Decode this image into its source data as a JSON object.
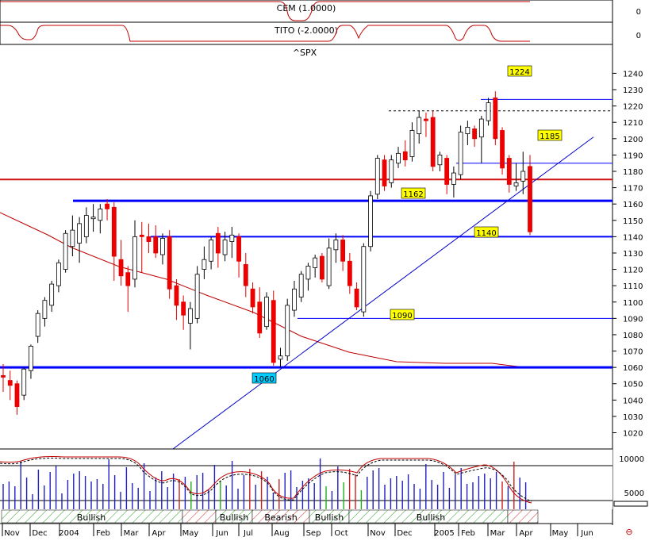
{
  "chart_data": {
    "type": "candlestick",
    "symbol": "^SPX",
    "indicators": {
      "cem_label": "CEM (1.0000)",
      "tito_label": "TITO (-2.0000)",
      "cem_value": "0",
      "tito_value": "0"
    },
    "y_ticks": [
      1020,
      1030,
      1040,
      1050,
      1060,
      1070,
      1080,
      1090,
      1100,
      1110,
      1120,
      1130,
      1140,
      1150,
      1160,
      1170,
      1180,
      1190,
      1200,
      1210,
      1220,
      1230,
      1240
    ],
    "ylim": [
      1012,
      1247
    ],
    "x_labels": [
      "Nov",
      "Dec",
      "2004",
      "Feb",
      "Mar",
      "Apr",
      "May",
      "Jun",
      "Jul",
      "Aug",
      "Sep",
      "Oct",
      "Nov",
      "Dec",
      "2005",
      "Feb",
      "Mar",
      "Apr",
      "May",
      "Jun"
    ],
    "levels": [
      {
        "value": 1224,
        "label": "1224",
        "color": "#0000ff"
      },
      {
        "value": 1185,
        "label": "1185",
        "color": "#0000ff"
      },
      {
        "value": 1162,
        "label": "1162",
        "color": "#0000ff"
      },
      {
        "value": 1140,
        "label": "1140",
        "color": "#0000ff"
      },
      {
        "value": 1090,
        "label": "1090",
        "color": "#0000ff"
      },
      {
        "value": 1060,
        "label": "1060",
        "color": "#0000ff"
      }
    ],
    "resistance_red": 1175,
    "dashed_level": 1217,
    "candles": [
      {
        "o": 1055,
        "h": 1062,
        "l": 1045,
        "c": 1054
      },
      {
        "o": 1052,
        "h": 1058,
        "l": 1040,
        "c": 1049
      },
      {
        "o": 1050,
        "h": 1052,
        "l": 1031,
        "c": 1036
      },
      {
        "o": 1043,
        "h": 1060,
        "l": 1040,
        "c": 1059
      },
      {
        "o": 1058,
        "h": 1074,
        "l": 1053,
        "c": 1073
      },
      {
        "o": 1079,
        "h": 1095,
        "l": 1075,
        "c": 1093
      },
      {
        "o": 1090,
        "h": 1103,
        "l": 1085,
        "c": 1101
      },
      {
        "o": 1098,
        "h": 1113,
        "l": 1094,
        "c": 1111
      },
      {
        "o": 1110,
        "h": 1126,
        "l": 1106,
        "c": 1124
      },
      {
        "o": 1120,
        "h": 1144,
        "l": 1118,
        "c": 1142
      },
      {
        "o": 1134,
        "h": 1153,
        "l": 1128,
        "c": 1144
      },
      {
        "o": 1136,
        "h": 1152,
        "l": 1124,
        "c": 1148
      },
      {
        "o": 1140,
        "h": 1158,
        "l": 1136,
        "c": 1153
      },
      {
        "o": 1151,
        "h": 1160,
        "l": 1143,
        "c": 1152
      },
      {
        "o": 1150,
        "h": 1160,
        "l": 1142,
        "c": 1157
      },
      {
        "o": 1160,
        "h": 1163,
        "l": 1150,
        "c": 1157
      },
      {
        "o": 1158,
        "h": 1161,
        "l": 1113,
        "c": 1128
      },
      {
        "o": 1126,
        "h": 1138,
        "l": 1110,
        "c": 1116
      },
      {
        "o": 1118,
        "h": 1122,
        "l": 1094,
        "c": 1110
      },
      {
        "o": 1114,
        "h": 1150,
        "l": 1109,
        "c": 1140
      },
      {
        "o": 1141,
        "h": 1149,
        "l": 1118,
        "c": 1140
      },
      {
        "o": 1140,
        "h": 1148,
        "l": 1130,
        "c": 1137
      },
      {
        "o": 1140,
        "h": 1147,
        "l": 1127,
        "c": 1130
      },
      {
        "o": 1129,
        "h": 1142,
        "l": 1123,
        "c": 1139
      },
      {
        "o": 1140,
        "h": 1144,
        "l": 1102,
        "c": 1108
      },
      {
        "o": 1110,
        "h": 1114,
        "l": 1089,
        "c": 1098
      },
      {
        "o": 1100,
        "h": 1104,
        "l": 1083,
        "c": 1092
      },
      {
        "o": 1087,
        "h": 1100,
        "l": 1071,
        "c": 1096
      },
      {
        "o": 1090,
        "h": 1122,
        "l": 1087,
        "c": 1117
      },
      {
        "o": 1120,
        "h": 1134,
        "l": 1114,
        "c": 1126
      },
      {
        "o": 1125,
        "h": 1140,
        "l": 1120,
        "c": 1138
      },
      {
        "o": 1142,
        "h": 1146,
        "l": 1121,
        "c": 1130
      },
      {
        "o": 1129,
        "h": 1143,
        "l": 1125,
        "c": 1138
      },
      {
        "o": 1137,
        "h": 1146,
        "l": 1127,
        "c": 1141
      },
      {
        "o": 1140,
        "h": 1142,
        "l": 1115,
        "c": 1125
      },
      {
        "o": 1123,
        "h": 1130,
        "l": 1103,
        "c": 1110
      },
      {
        "o": 1108,
        "h": 1112,
        "l": 1093,
        "c": 1097
      },
      {
        "o": 1100,
        "h": 1109,
        "l": 1078,
        "c": 1081
      },
      {
        "o": 1085,
        "h": 1106,
        "l": 1083,
        "c": 1103
      },
      {
        "o": 1101,
        "h": 1107,
        "l": 1061,
        "c": 1063
      },
      {
        "o": 1065,
        "h": 1072,
        "l": 1060,
        "c": 1067
      },
      {
        "o": 1067,
        "h": 1102,
        "l": 1064,
        "c": 1098
      },
      {
        "o": 1095,
        "h": 1113,
        "l": 1091,
        "c": 1108
      },
      {
        "o": 1103,
        "h": 1119,
        "l": 1100,
        "c": 1117
      },
      {
        "o": 1114,
        "h": 1124,
        "l": 1107,
        "c": 1122
      },
      {
        "o": 1121,
        "h": 1129,
        "l": 1115,
        "c": 1127
      },
      {
        "o": 1128,
        "h": 1130,
        "l": 1112,
        "c": 1114
      },
      {
        "o": 1110,
        "h": 1139,
        "l": 1108,
        "c": 1133
      },
      {
        "o": 1132,
        "h": 1142,
        "l": 1124,
        "c": 1138
      },
      {
        "o": 1138,
        "h": 1141,
        "l": 1119,
        "c": 1125
      },
      {
        "o": 1125,
        "h": 1130,
        "l": 1105,
        "c": 1110
      },
      {
        "o": 1108,
        "h": 1112,
        "l": 1095,
        "c": 1097
      },
      {
        "o": 1094,
        "h": 1136,
        "l": 1091,
        "c": 1134
      },
      {
        "o": 1134,
        "h": 1168,
        "l": 1131,
        "c": 1165
      },
      {
        "o": 1166,
        "h": 1190,
        "l": 1163,
        "c": 1188
      },
      {
        "o": 1187,
        "h": 1190,
        "l": 1168,
        "c": 1171
      },
      {
        "o": 1173,
        "h": 1190,
        "l": 1170,
        "c": 1187
      },
      {
        "o": 1185,
        "h": 1195,
        "l": 1182,
        "c": 1191
      },
      {
        "o": 1192,
        "h": 1199,
        "l": 1183,
        "c": 1187
      },
      {
        "o": 1189,
        "h": 1210,
        "l": 1186,
        "c": 1205
      },
      {
        "o": 1203,
        "h": 1217,
        "l": 1197,
        "c": 1213
      },
      {
        "o": 1212,
        "h": 1216,
        "l": 1201,
        "c": 1211
      },
      {
        "o": 1213,
        "h": 1217,
        "l": 1180,
        "c": 1183
      },
      {
        "o": 1184,
        "h": 1192,
        "l": 1180,
        "c": 1190
      },
      {
        "o": 1188,
        "h": 1190,
        "l": 1166,
        "c": 1172
      },
      {
        "o": 1172,
        "h": 1183,
        "l": 1164,
        "c": 1179
      },
      {
        "o": 1178,
        "h": 1208,
        "l": 1175,
        "c": 1204
      },
      {
        "o": 1203,
        "h": 1211,
        "l": 1196,
        "c": 1207
      },
      {
        "o": 1206,
        "h": 1208,
        "l": 1195,
        "c": 1200
      },
      {
        "o": 1201,
        "h": 1214,
        "l": 1185,
        "c": 1212
      },
      {
        "o": 1211,
        "h": 1225,
        "l": 1208,
        "c": 1222
      },
      {
        "o": 1225,
        "h": 1229,
        "l": 1196,
        "c": 1200
      },
      {
        "o": 1205,
        "h": 1207,
        "l": 1178,
        "c": 1182
      },
      {
        "o": 1188,
        "h": 1190,
        "l": 1167,
        "c": 1172
      },
      {
        "o": 1171,
        "h": 1185,
        "l": 1168,
        "c": 1173
      },
      {
        "o": 1174,
        "h": 1192,
        "l": 1166,
        "c": 1180
      },
      {
        "o": 1183,
        "h": 1190,
        "l": 1141,
        "c": 1143
      }
    ],
    "volume_ticks": [
      "10000",
      "5000"
    ],
    "sentiment_bands": [
      "Bullish",
      "Bullish",
      "Bearish",
      "Bullish",
      "Bullish"
    ]
  }
}
